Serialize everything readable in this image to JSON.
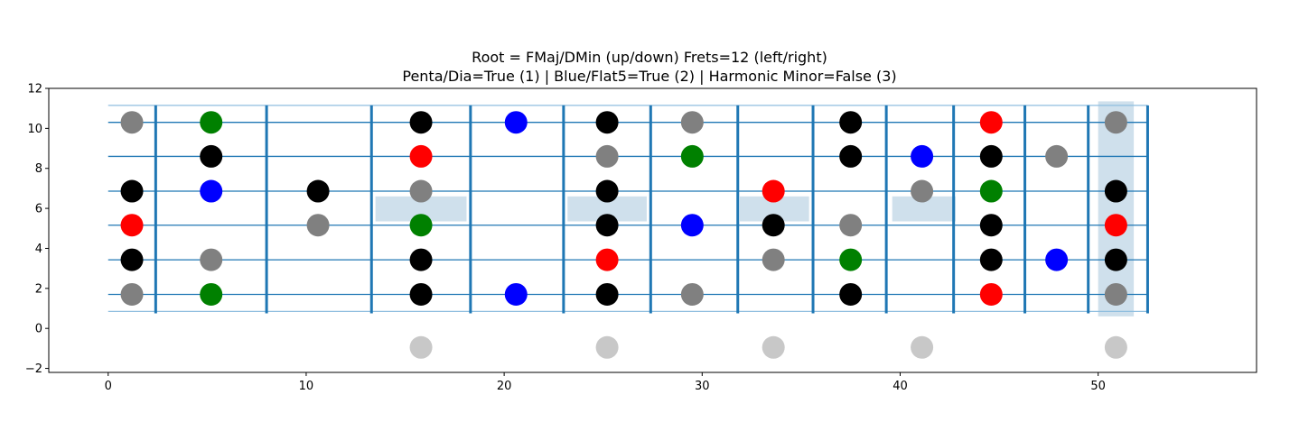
{
  "chart_data": {
    "type": "scatter",
    "title_line1": "Root = FMaj/DMin (up/down)  Frets=12 (left/right)",
    "title_line2": "Penta/Dia=True (1) | Blue/Flat5=True (2) | Harmonic Minor=False (3)",
    "xlim": [
      -3,
      58
    ],
    "ylim": [
      -2.2,
      12
    ],
    "xticks": [
      0,
      10,
      20,
      30,
      40,
      50
    ],
    "yticks": [
      -2,
      0,
      2,
      4,
      6,
      8,
      10,
      12
    ],
    "grid": false,
    "colors": {
      "black": "#000000",
      "grey": "#808080",
      "red": "#ff0000",
      "green": "#008000",
      "blue": "#0000ff",
      "lightgrey": "#c8c8c8",
      "string_line": "#1f77b4",
      "fret_line": "#1f77b4",
      "highlight": "#cfe0ec"
    },
    "strings_y": [
      1.7,
      3.43,
      5.16,
      6.86,
      8.6,
      10.3
    ],
    "string_edges_y": [
      0.85,
      11.15
    ],
    "string_x_range": [
      0,
      52.5
    ],
    "frets_x": [
      2.4,
      8.0,
      13.3,
      18.3,
      23.0,
      27.4,
      31.8,
      35.6,
      39.3,
      42.7,
      46.3,
      49.5,
      52.5
    ],
    "fret_y_range": [
      0.75,
      11.15
    ],
    "inlays": [
      {
        "x0": 13.5,
        "x1": 18.1,
        "y0": 5.35,
        "y1": 6.6
      },
      {
        "x0": 23.2,
        "x1": 27.2,
        "y0": 5.35,
        "y1": 6.6
      },
      {
        "x0": 31.9,
        "x1": 35.4,
        "y0": 5.35,
        "y1": 6.6
      },
      {
        "x0": 39.6,
        "x1": 42.8,
        "y0": 5.35,
        "y1": 6.6
      }
    ],
    "column_highlight": {
      "x0": 50.0,
      "x1": 51.8,
      "y0": 0.6,
      "y1": 11.35
    },
    "points": [
      {
        "x": 1.2,
        "y": 10.3,
        "c": "grey"
      },
      {
        "x": 5.2,
        "y": 10.3,
        "c": "green"
      },
      {
        "x": 15.8,
        "y": 10.3,
        "c": "black"
      },
      {
        "x": 20.6,
        "y": 10.3,
        "c": "blue"
      },
      {
        "x": 25.2,
        "y": 10.3,
        "c": "black"
      },
      {
        "x": 29.5,
        "y": 10.3,
        "c": "grey"
      },
      {
        "x": 37.5,
        "y": 10.3,
        "c": "black"
      },
      {
        "x": 44.6,
        "y": 10.3,
        "c": "red"
      },
      {
        "x": 50.9,
        "y": 10.3,
        "c": "grey"
      },
      {
        "x": 5.2,
        "y": 8.6,
        "c": "black"
      },
      {
        "x": 15.8,
        "y": 8.6,
        "c": "red"
      },
      {
        "x": 25.2,
        "y": 8.6,
        "c": "grey"
      },
      {
        "x": 29.5,
        "y": 8.6,
        "c": "green"
      },
      {
        "x": 37.5,
        "y": 8.6,
        "c": "black"
      },
      {
        "x": 41.1,
        "y": 8.6,
        "c": "blue"
      },
      {
        "x": 44.6,
        "y": 8.6,
        "c": "black"
      },
      {
        "x": 47.9,
        "y": 8.6,
        "c": "grey"
      },
      {
        "x": 1.2,
        "y": 6.86,
        "c": "black"
      },
      {
        "x": 5.2,
        "y": 6.86,
        "c": "blue"
      },
      {
        "x": 10.6,
        "y": 6.86,
        "c": "black"
      },
      {
        "x": 15.8,
        "y": 6.86,
        "c": "grey"
      },
      {
        "x": 25.2,
        "y": 6.86,
        "c": "black"
      },
      {
        "x": 33.6,
        "y": 6.86,
        "c": "red"
      },
      {
        "x": 41.1,
        "y": 6.86,
        "c": "grey"
      },
      {
        "x": 44.6,
        "y": 6.86,
        "c": "green"
      },
      {
        "x": 50.9,
        "y": 6.86,
        "c": "black"
      },
      {
        "x": 1.2,
        "y": 5.16,
        "c": "red"
      },
      {
        "x": 10.6,
        "y": 5.16,
        "c": "grey"
      },
      {
        "x": 15.8,
        "y": 5.16,
        "c": "green"
      },
      {
        "x": 25.2,
        "y": 5.16,
        "c": "black"
      },
      {
        "x": 29.5,
        "y": 5.16,
        "c": "blue"
      },
      {
        "x": 33.6,
        "y": 5.16,
        "c": "black"
      },
      {
        "x": 37.5,
        "y": 5.16,
        "c": "grey"
      },
      {
        "x": 44.6,
        "y": 5.16,
        "c": "black"
      },
      {
        "x": 50.9,
        "y": 5.16,
        "c": "red"
      },
      {
        "x": 1.2,
        "y": 3.43,
        "c": "black"
      },
      {
        "x": 5.2,
        "y": 3.43,
        "c": "grey"
      },
      {
        "x": 15.8,
        "y": 3.43,
        "c": "black"
      },
      {
        "x": 25.2,
        "y": 3.43,
        "c": "red"
      },
      {
        "x": 33.6,
        "y": 3.43,
        "c": "grey"
      },
      {
        "x": 37.5,
        "y": 3.43,
        "c": "green"
      },
      {
        "x": 44.6,
        "y": 3.43,
        "c": "black"
      },
      {
        "x": 47.9,
        "y": 3.43,
        "c": "blue"
      },
      {
        "x": 50.9,
        "y": 3.43,
        "c": "black"
      },
      {
        "x": 1.2,
        "y": 1.7,
        "c": "grey"
      },
      {
        "x": 5.2,
        "y": 1.7,
        "c": "green"
      },
      {
        "x": 15.8,
        "y": 1.7,
        "c": "black"
      },
      {
        "x": 20.6,
        "y": 1.7,
        "c": "blue"
      },
      {
        "x": 25.2,
        "y": 1.7,
        "c": "black"
      },
      {
        "x": 29.5,
        "y": 1.7,
        "c": "grey"
      },
      {
        "x": 37.5,
        "y": 1.7,
        "c": "black"
      },
      {
        "x": 44.6,
        "y": 1.7,
        "c": "red"
      },
      {
        "x": 50.9,
        "y": 1.7,
        "c": "grey"
      },
      {
        "x": 15.8,
        "y": -0.95,
        "c": "lightgrey"
      },
      {
        "x": 25.2,
        "y": -0.95,
        "c": "lightgrey"
      },
      {
        "x": 33.6,
        "y": -0.95,
        "c": "lightgrey"
      },
      {
        "x": 41.1,
        "y": -0.95,
        "c": "lightgrey"
      },
      {
        "x": 50.9,
        "y": -0.95,
        "c": "lightgrey"
      }
    ]
  }
}
